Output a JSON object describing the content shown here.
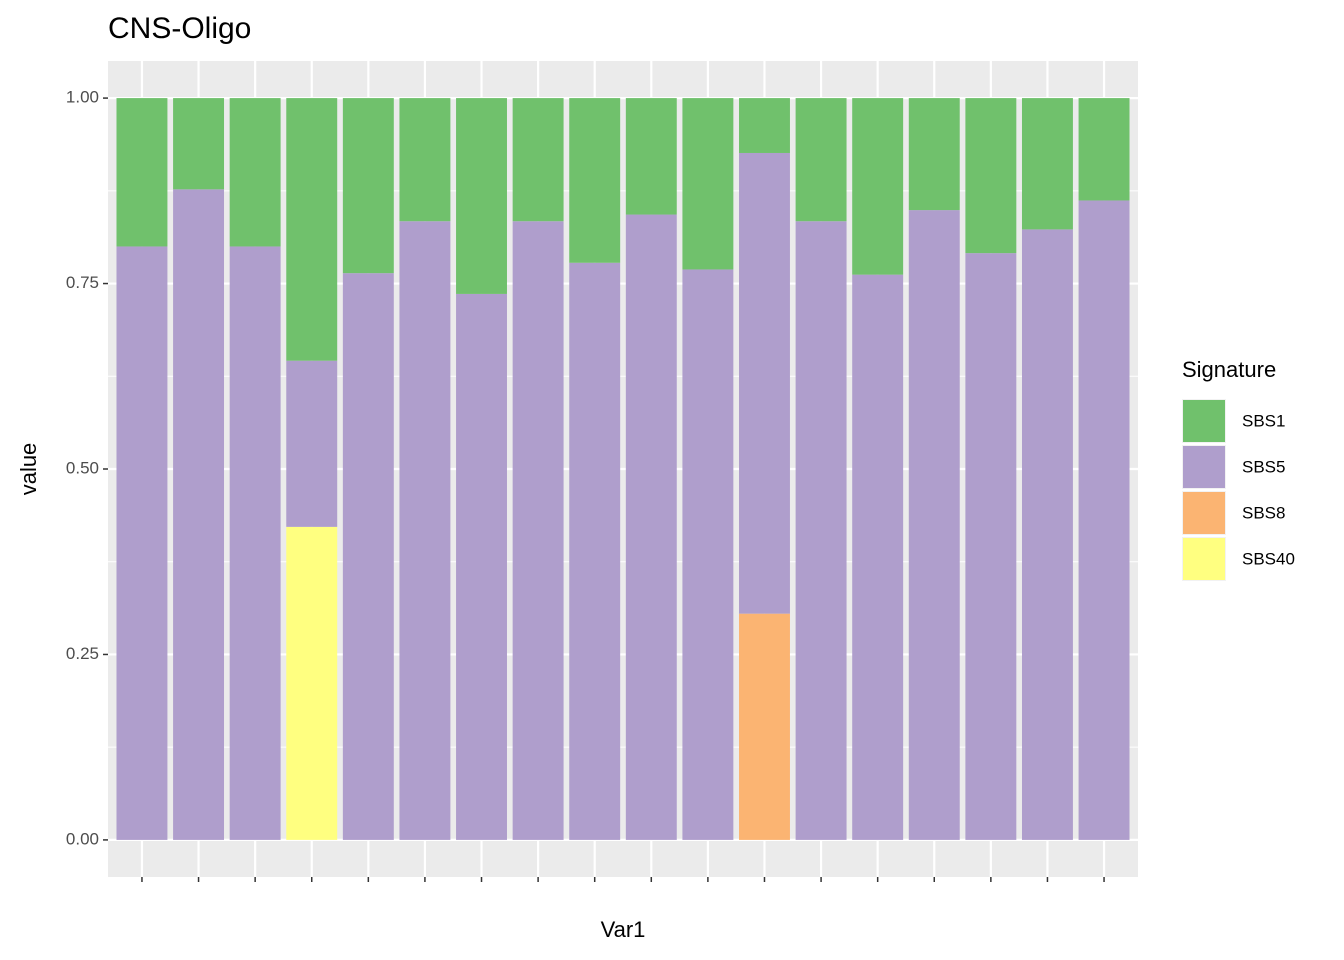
{
  "chart_data": {
    "type": "stacked_bar",
    "title": "CNS-Oligo",
    "x_label": "Var1",
    "y_label": "value",
    "legend_title": "Signature",
    "legend_position": "right",
    "categories": [
      null,
      null,
      null,
      null,
      null,
      null,
      null,
      null,
      null,
      null,
      null,
      null,
      null,
      null,
      null,
      null,
      null,
      null
    ],
    "series": [
      {
        "name": "SBS40",
        "color": "#ffff80",
        "values": [
          0,
          0,
          0,
          0.422,
          0,
          0,
          0,
          0,
          0,
          0,
          0,
          0,
          0,
          0,
          0,
          0,
          0,
          0
        ]
      },
      {
        "name": "SBS8",
        "color": "#fbb472",
        "values": [
          0,
          0,
          0,
          0,
          0,
          0,
          0,
          0,
          0,
          0,
          0,
          0.305,
          0,
          0,
          0,
          0,
          0,
          0
        ]
      },
      {
        "name": "SBS5",
        "color": "#af9ecc",
        "values": [
          0.8,
          0.877,
          0.8,
          0.224,
          0.764,
          0.834,
          0.736,
          0.834,
          0.778,
          0.843,
          0.769,
          0.621,
          0.834,
          0.762,
          0.849,
          0.791,
          0.823,
          0.862
        ]
      },
      {
        "name": "SBS1",
        "color": "#70c16c",
        "values": [
          0.2,
          0.123,
          0.2,
          0.354,
          0.236,
          0.166,
          0.264,
          0.166,
          0.222,
          0.157,
          0.231,
          0.074,
          0.166,
          0.238,
          0.151,
          0.209,
          0.177,
          0.138
        ]
      }
    ],
    "legend_order": [
      "SBS1",
      "SBS5",
      "SBS8",
      "SBS40"
    ],
    "ylim": [
      -0.05,
      1.05
    ],
    "yticks": [
      {
        "value": 0,
        "label": "0.00"
      },
      {
        "value": 0.25,
        "label": "0.25"
      },
      {
        "value": 0.5,
        "label": "0.50"
      },
      {
        "value": 0.75,
        "label": "0.75"
      },
      {
        "value": 1,
        "label": "1.00"
      }
    ],
    "grid": true
  }
}
